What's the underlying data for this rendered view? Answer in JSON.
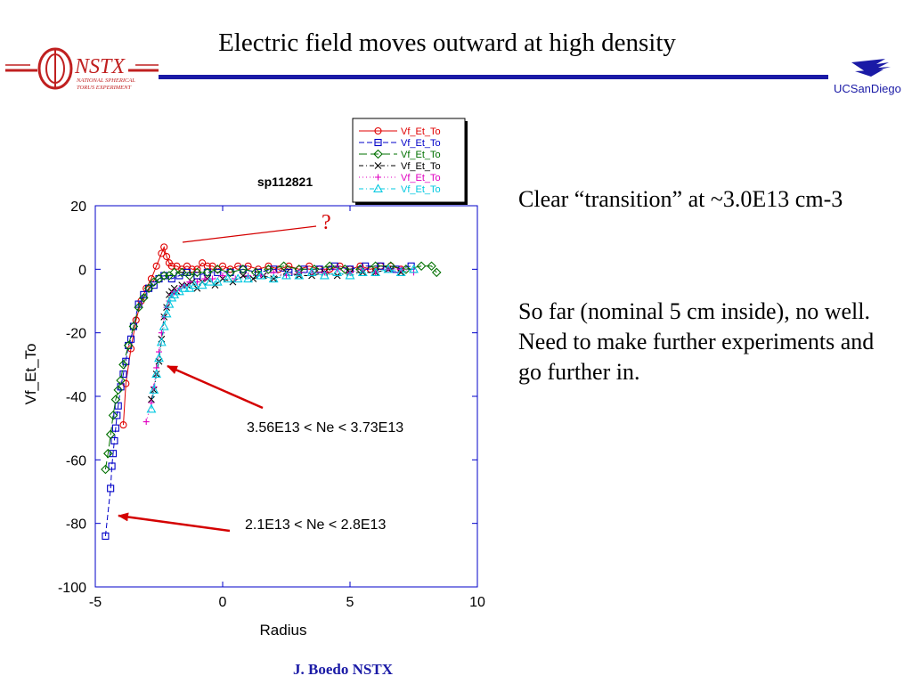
{
  "slide": {
    "title": "Electric field moves outward at high density",
    "footer": "J. Boedo NSTX"
  },
  "logos": {
    "left_text": "NSTX",
    "left_subtext": [
      "NATIONAL SPHERICAL",
      "TORUS EXPERIMENT"
    ],
    "right_text": "UCSanDiego"
  },
  "right_panel": {
    "paragraph1": "Clear “transition” at ~3.0E13 cm-3",
    "paragraph2": "So far (nominal 5 cm inside), no well. Need to make further experiments and go further in."
  },
  "colors": {
    "accent": "#1a1aa6",
    "annotation_arrow": "#d40000"
  },
  "chart_data": {
    "type": "scatter",
    "title": "sp112821",
    "xlabel": "Radius",
    "ylabel": "Vf_Et_To",
    "xlim": [
      -5,
      10
    ],
    "ylim": [
      -100,
      20
    ],
    "xticks": [
      -5,
      0,
      5,
      10
    ],
    "yticks": [
      20,
      0,
      -20,
      -40,
      -60,
      -80,
      -100
    ],
    "grid": false,
    "legend_position": "top-right",
    "series": [
      {
        "name": "Vf_Et_To",
        "color": "#e00000",
        "marker": "circle",
        "line": "solid",
        "x": [
          -3.9,
          -3.8,
          -3.6,
          -3.4,
          -3.2,
          -3.0,
          -2.8,
          -2.6,
          -2.4,
          -2.3,
          -2.2,
          -2.1,
          -2.0,
          -1.8,
          -1.6,
          -1.4,
          -1.2,
          -1.0,
          -0.8,
          -0.6,
          -0.4,
          -0.2,
          0.0,
          0.3,
          0.6,
          1.0,
          1.4,
          1.8,
          2.2,
          2.6,
          3.0,
          3.4,
          3.8,
          4.2,
          4.6,
          5.0,
          5.4,
          5.8,
          6.2,
          6.6,
          7.0
        ],
        "y": [
          -49,
          -36,
          -25,
          -16,
          -10,
          -6,
          -3,
          1,
          5,
          7,
          4,
          2,
          1,
          1,
          0,
          1,
          0,
          0,
          2,
          1,
          1,
          0,
          1,
          0,
          1,
          1,
          0,
          1,
          0,
          1,
          0,
          1,
          0,
          0,
          1,
          0,
          1,
          0,
          1,
          1,
          0
        ]
      },
      {
        "name": "Vf_Et_To",
        "color": "#0000c8",
        "marker": "square",
        "line": "dash",
        "x": [
          -4.6,
          -4.4,
          -4.35,
          -4.3,
          -4.25,
          -4.2,
          -4.15,
          -4.1,
          -4.0,
          -3.9,
          -3.8,
          -3.7,
          -3.6,
          -3.5,
          -3.3,
          -3.1,
          -2.9,
          -2.7,
          -2.5,
          -2.3,
          -2.0,
          -1.7,
          -1.4,
          -1.0,
          -0.6,
          -0.2,
          0.3,
          0.8,
          1.4,
          2.0,
          2.6,
          3.2,
          3.8,
          4.4,
          5.0,
          5.6,
          6.2,
          6.8,
          7.4
        ],
        "y": [
          -84,
          -69,
          -62,
          -58,
          -54,
          -50,
          -46,
          -43,
          -37,
          -33,
          -29,
          -24,
          -22,
          -18,
          -11,
          -8,
          -6,
          -5,
          -3,
          -2,
          -3,
          -2,
          -1,
          -2,
          -1,
          -1,
          -1,
          0,
          -1,
          0,
          -1,
          0,
          0,
          1,
          0,
          1,
          1,
          0,
          1
        ]
      },
      {
        "name": "Vf_Et_To",
        "color": "#007000",
        "marker": "diamond",
        "line": "longdash",
        "x": [
          -4.6,
          -4.5,
          -4.4,
          -4.3,
          -4.2,
          -4.1,
          -4.0,
          -3.9,
          -3.7,
          -3.5,
          -3.3,
          -3.1,
          -2.9,
          -2.7,
          -2.5,
          -2.3,
          -2.1,
          -1.9,
          -1.6,
          -1.3,
          -1.0,
          -0.6,
          -0.2,
          0.3,
          0.8,
          1.3,
          1.8,
          2.4,
          3.0,
          3.6,
          4.2,
          4.8,
          5.4,
          6.0,
          6.6,
          7.2,
          7.8,
          8.2,
          8.4
        ],
        "y": [
          -63,
          -58,
          -52,
          -46,
          -41,
          -38,
          -35,
          -30,
          -24,
          -18,
          -12,
          -9,
          -6,
          -4,
          -3,
          -2,
          -2,
          -1,
          -1,
          -2,
          -1,
          -1,
          0,
          -1,
          0,
          -1,
          0,
          1,
          0,
          0,
          1,
          0,
          0,
          1,
          1,
          0,
          1,
          1,
          -1
        ]
      },
      {
        "name": "Vf_Et_To",
        "color": "#000000",
        "marker": "x",
        "line": "dashdot",
        "x": [
          -2.8,
          -2.7,
          -2.6,
          -2.5,
          -2.4,
          -2.3,
          -2.2,
          -2.1,
          -2.0,
          -1.9,
          -1.8,
          -1.6,
          -1.4,
          -1.2,
          -1.0,
          -0.8,
          -0.6,
          -0.3,
          0.0,
          0.4,
          0.8,
          1.2,
          1.6,
          2.0,
          2.5,
          3.0,
          3.5,
          4.0,
          4.5,
          5.0,
          5.5,
          6.0,
          6.5,
          7.0
        ],
        "y": [
          -41,
          -38,
          -33,
          -29,
          -22,
          -15,
          -12,
          -8,
          -7,
          -6,
          -7,
          -5,
          -5,
          -4,
          -6,
          -4,
          -3,
          -5,
          -3,
          -4,
          -2,
          -3,
          -2,
          -3,
          -1,
          -2,
          -2,
          -1,
          -2,
          -1,
          -1,
          -1,
          0,
          -1
        ]
      },
      {
        "name": "Vf_Et_To",
        "color": "#e000c0",
        "marker": "plus",
        "line": "dotted",
        "x": [
          -3.0,
          -2.8,
          -2.7,
          -2.6,
          -2.5,
          -2.4,
          -2.3,
          -2.2,
          -2.1,
          -2.0,
          -1.9,
          -1.7,
          -1.5,
          -1.3,
          -1.0,
          -0.7,
          -0.4,
          0.0,
          0.5,
          1.0,
          1.5,
          2.0,
          2.5,
          3.0,
          3.5,
          4.0,
          4.5,
          5.0,
          5.5,
          6.0,
          6.5,
          7.0,
          7.5
        ],
        "y": [
          -48,
          -42,
          -37,
          -31,
          -26,
          -20,
          -15,
          -12,
          -10,
          -8,
          -7,
          -6,
          -5,
          -4,
          -4,
          -3,
          -3,
          -2,
          -3,
          -2,
          -2,
          -1,
          -2,
          -1,
          -1,
          -1,
          0,
          -1,
          0,
          -1,
          0,
          0,
          -1
        ]
      },
      {
        "name": "Vf_Et_To",
        "color": "#00c8e0",
        "marker": "triangle",
        "line": "dashdot",
        "x": [
          -2.8,
          -2.7,
          -2.6,
          -2.5,
          -2.4,
          -2.3,
          -2.2,
          -2.1,
          -2.0,
          -1.9,
          -1.7,
          -1.5,
          -1.3,
          -1.1,
          -0.8,
          -0.5,
          -0.2,
          0.2,
          0.6,
          1.0,
          1.5,
          2.0,
          2.5,
          3.0,
          3.5,
          4.0,
          4.5,
          5.0,
          5.5,
          6.0,
          6.5,
          7.0,
          7.5
        ],
        "y": [
          -44,
          -38,
          -33,
          -28,
          -23,
          -18,
          -14,
          -11,
          -9,
          -8,
          -7,
          -6,
          -6,
          -5,
          -5,
          -4,
          -4,
          -3,
          -3,
          -3,
          -2,
          -3,
          -2,
          -2,
          -1,
          -2,
          -1,
          -2,
          -1,
          -1,
          0,
          -1,
          0
        ]
      }
    ],
    "annotations": [
      {
        "text": "?",
        "color": "#d40000"
      },
      {
        "text": "3.56E13 < Ne < 3.73E13"
      },
      {
        "text": "2.1E13 < Ne < 2.8E13"
      }
    ]
  }
}
